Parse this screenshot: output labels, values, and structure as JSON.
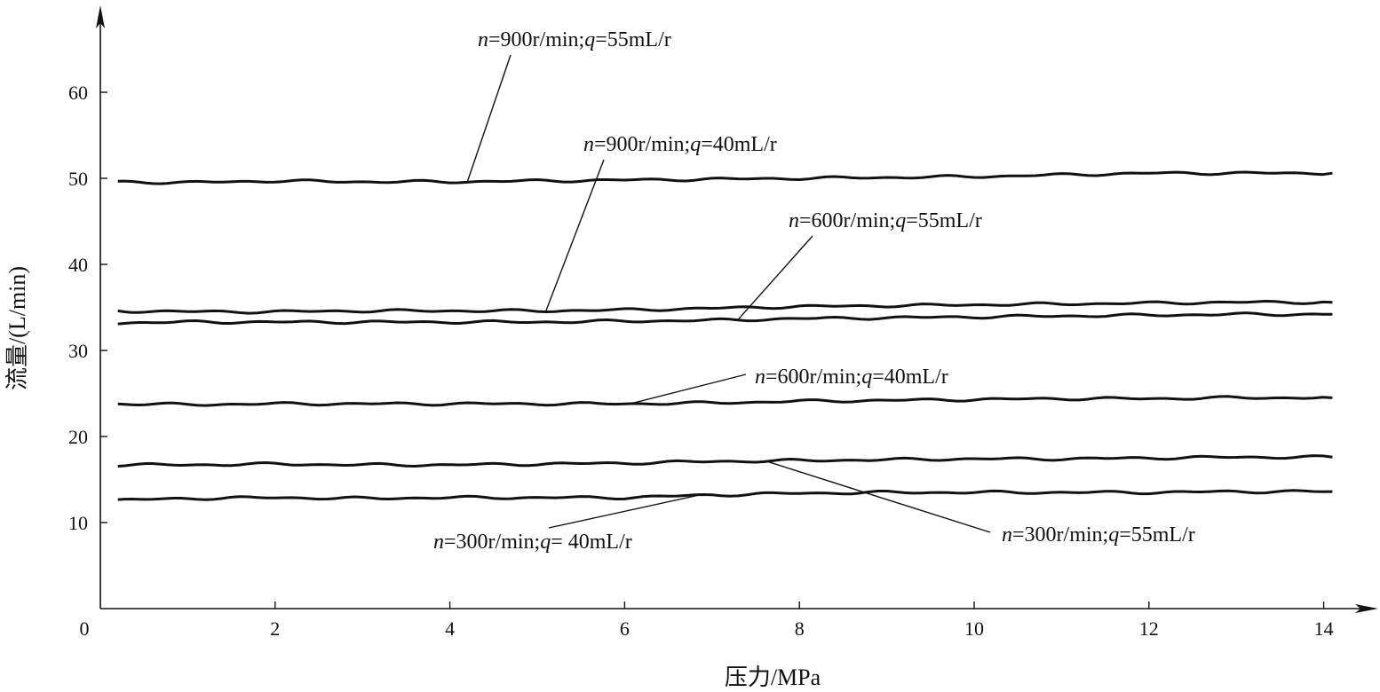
{
  "chart_data": {
    "type": "line",
    "xlabel": "压力/MPa",
    "ylabel": "流量/(L/min)",
    "xlim": [
      0,
      14.5
    ],
    "ylim": [
      0,
      70
    ],
    "xticks": [
      0,
      2,
      4,
      6,
      8,
      10,
      12,
      14
    ],
    "yticks": [
      10,
      20,
      30,
      40,
      50,
      60
    ],
    "grid": false,
    "series": [
      {
        "name": "n=900r/min;q=55mL/r",
        "label_parts": [
          "n",
          "=900r/min;",
          "q",
          "=55mL/r"
        ],
        "x": [
          0.2,
          1.0,
          2.0,
          3.0,
          4.0,
          5.0,
          6.0,
          7.0,
          8.0,
          9.0,
          10.0,
          11.0,
          12.0,
          13.0,
          14.1
        ],
        "y": [
          49.6,
          49.5,
          49.7,
          49.6,
          49.6,
          49.7,
          49.8,
          49.9,
          50.0,
          50.1,
          50.2,
          50.4,
          50.6,
          50.6,
          50.6
        ],
        "label_anchor": [
          4.2,
          49.6
        ]
      },
      {
        "name": "n=900r/min;q=40mL/r",
        "label_parts": [
          "n",
          "=900r/min;",
          "q",
          "=40mL/r"
        ],
        "x": [
          0.2,
          1.0,
          2.0,
          3.0,
          4.0,
          5.0,
          6.0,
          7.0,
          8.0,
          9.0,
          10.0,
          11.0,
          12.0,
          13.0,
          14.1
        ],
        "y": [
          34.6,
          34.5,
          34.5,
          34.6,
          34.6,
          34.6,
          34.7,
          34.9,
          35.1,
          35.2,
          35.3,
          35.4,
          35.5,
          35.6,
          35.6
        ],
        "label_anchor": [
          5.1,
          34.6
        ]
      },
      {
        "name": "n=600r/min;q=55mL/r",
        "label_parts": [
          "n",
          "=600r/min;",
          "q",
          "=55mL/r"
        ],
        "x": [
          0.2,
          1.0,
          2.0,
          3.0,
          4.0,
          5.0,
          6.0,
          7.0,
          8.0,
          9.0,
          10.0,
          11.0,
          12.0,
          13.0,
          14.1
        ],
        "y": [
          33.2,
          33.3,
          33.3,
          33.3,
          33.3,
          33.3,
          33.4,
          33.5,
          33.7,
          33.8,
          33.9,
          34.0,
          34.1,
          34.2,
          34.2
        ],
        "label_anchor": [
          7.3,
          33.6
        ]
      },
      {
        "name": "n=600r/min;q=40mL/r",
        "label_parts": [
          "n",
          "=600r/min;",
          "q",
          "=40mL/r"
        ],
        "x": [
          0.2,
          1.0,
          2.0,
          3.0,
          4.0,
          5.0,
          6.0,
          7.0,
          8.0,
          9.0,
          10.0,
          11.0,
          12.0,
          13.0,
          14.1
        ],
        "y": [
          23.8,
          23.7,
          23.8,
          23.8,
          23.8,
          23.8,
          23.8,
          23.9,
          24.1,
          24.2,
          24.3,
          24.4,
          24.4,
          24.5,
          24.5
        ],
        "label_anchor": [
          6.1,
          23.9
        ]
      },
      {
        "name": "n=300r/min;q=55mL/r",
        "label_parts": [
          "n",
          "=300r/min;",
          "q",
          "=55mL/r"
        ],
        "x": [
          0.2,
          1.0,
          2.0,
          3.0,
          4.0,
          5.0,
          6.0,
          7.0,
          8.0,
          9.0,
          10.0,
          11.0,
          12.0,
          13.0,
          14.1
        ],
        "y": [
          16.7,
          16.7,
          16.8,
          16.7,
          16.7,
          16.8,
          16.9,
          17.1,
          17.2,
          17.3,
          17.4,
          17.4,
          17.5,
          17.6,
          17.6
        ],
        "label_anchor": [
          7.6,
          17.2
        ]
      },
      {
        "name": "n=300r/min;q=40mL/r",
        "label_parts": [
          "n",
          "=300r/min;",
          "q",
          "= 40mL/r"
        ],
        "x": [
          0.2,
          1.0,
          2.0,
          3.0,
          4.0,
          5.0,
          6.0,
          7.0,
          8.0,
          9.0,
          10.0,
          11.0,
          12.0,
          13.0,
          14.1
        ],
        "y": [
          12.6,
          12.8,
          12.9,
          12.8,
          12.9,
          12.9,
          12.9,
          13.2,
          13.4,
          13.5,
          13.5,
          13.5,
          13.5,
          13.6,
          13.6
        ],
        "label_anchor": [
          6.9,
          13.3
        ]
      }
    ]
  }
}
